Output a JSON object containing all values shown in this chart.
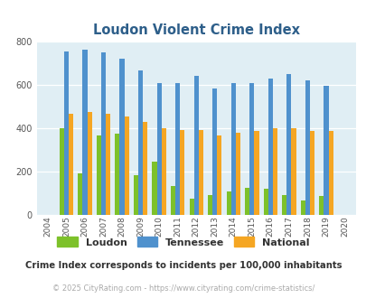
{
  "title": "Loudon Violent Crime Index",
  "years": [
    2004,
    2005,
    2006,
    2007,
    2008,
    2009,
    2010,
    2011,
    2012,
    2013,
    2014,
    2015,
    2016,
    2017,
    2018,
    2019,
    2020
  ],
  "loudon": [
    0,
    400,
    190,
    365,
    375,
    182,
    245,
    130,
    75,
    90,
    107,
    122,
    118,
    90,
    65,
    85,
    0
  ],
  "tennessee": [
    0,
    755,
    762,
    750,
    720,
    665,
    610,
    607,
    643,
    585,
    607,
    610,
    630,
    650,
    620,
    598,
    0
  ],
  "national": [
    0,
    468,
    475,
    465,
    452,
    427,
    401,
    390,
    390,
    368,
    378,
    385,
    398,
    398,
    385,
    385,
    0
  ],
  "loudon_color": "#7dc12a",
  "tennessee_color": "#4f91cd",
  "national_color": "#f5a623",
  "bg_color": "#e0eef4",
  "ylim": [
    0,
    800
  ],
  "yticks": [
    0,
    200,
    400,
    600,
    800
  ],
  "bar_width": 0.25,
  "subtitle": "Crime Index corresponds to incidents per 100,000 inhabitants",
  "footer": "© 2025 CityRating.com - https://www.cityrating.com/crime-statistics/",
  "legend_labels": [
    "Loudon",
    "Tennessee",
    "National"
  ],
  "title_color": "#2e5f8a",
  "subtitle_color": "#333333",
  "footer_color": "#aaaaaa"
}
